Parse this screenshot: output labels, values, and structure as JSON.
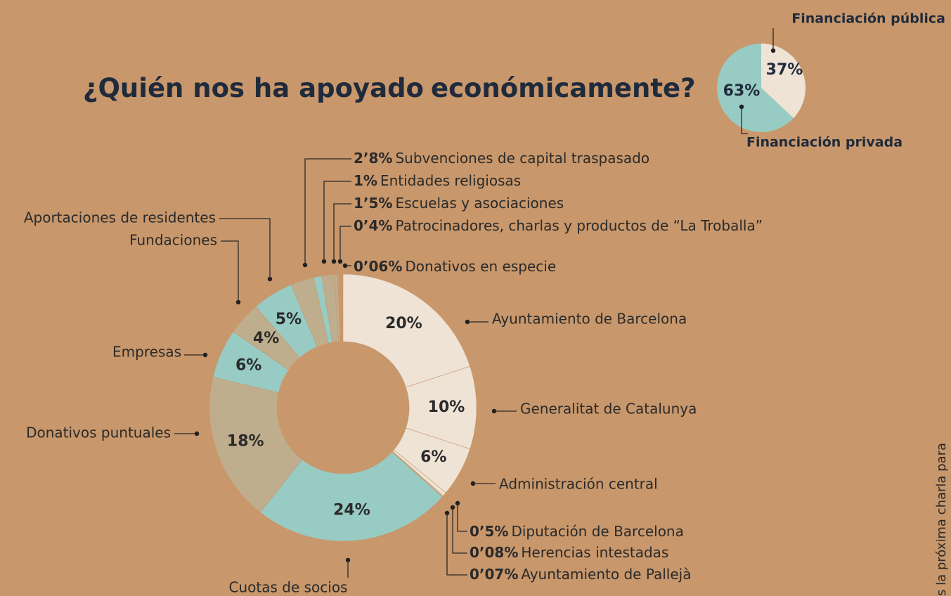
{
  "chart_data": [
    {
      "type": "donut",
      "title": [
        "¿Quién nos ha apoyado",
        "económicamente?"
      ],
      "categories": [
        "Ayuntamiento de Barcelona",
        "Generalitat de Catalunya",
        "Administración central",
        "Diputación de Barcelona",
        "Herencias intestadas",
        "Ayuntamiento de Pallejà",
        "Cuotas de socios",
        "Donativos puntuales",
        "Empresas",
        "Fundaciones",
        "Aportaciones de residentes",
        "Subvenciones de capital traspasado",
        "Entidades religiosas",
        "Escuelas y asociaciones",
        "Patrocinadores, charlas y productos de “La Troballa”",
        "Donativos en especie"
      ],
      "values": [
        20,
        10,
        6,
        0.5,
        0.08,
        0.07,
        24,
        18,
        6,
        4,
        5,
        2.8,
        1,
        1.5,
        0.4,
        0.06
      ],
      "value_labels": [
        "20%",
        "10%",
        "6%",
        "0’5%",
        "0’08%",
        "0’07%",
        "24%",
        "18%",
        "6%",
        "4%",
        "5%",
        "2’8%",
        "1%",
        "1’5%",
        "0’4%",
        "0’06%"
      ],
      "colors": [
        "#efe3d6",
        "#efe3d6",
        "#efe3d6",
        "#efe3d6",
        "#efe3d6",
        "#efe3d6",
        "#97cbc3",
        "#bfae8e",
        "#97cbc3",
        "#bfae8e",
        "#97cbc3",
        "#bfae8e",
        "#97cbc3",
        "#bfae8e",
        "#bfae8e",
        "#97cbc3"
      ]
    },
    {
      "type": "pie",
      "categories": [
        "Financiación pública",
        "Financiación privada"
      ],
      "values": [
        37,
        63
      ],
      "value_labels": [
        "37%",
        "63%"
      ],
      "colors": [
        "#efe3d6",
        "#97cbc3"
      ]
    }
  ],
  "side_text": "s la próxima charla para"
}
